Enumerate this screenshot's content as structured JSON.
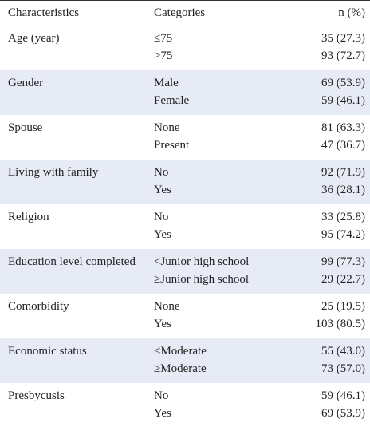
{
  "table": {
    "header": [
      "Characteristics",
      "Categories",
      "n (%)"
    ],
    "rows": [
      {
        "characteristic": "Age (year)",
        "items": [
          {
            "category": "≤75",
            "n": "35 (27.3)"
          },
          {
            "category": ">75",
            "n": "93 (72.7)"
          }
        ]
      },
      {
        "characteristic": "Gender",
        "items": [
          {
            "category": "Male",
            "n": "69 (53.9)"
          },
          {
            "category": "Female",
            "n": "59 (46.1)"
          }
        ]
      },
      {
        "characteristic": "Spouse",
        "items": [
          {
            "category": "None",
            "n": "81 (63.3)"
          },
          {
            "category": "Present",
            "n": "47 (36.7)"
          }
        ]
      },
      {
        "characteristic": "Living with family",
        "items": [
          {
            "category": "No",
            "n": "92 (71.9)"
          },
          {
            "category": "Yes",
            "n": "36 (28.1)"
          }
        ]
      },
      {
        "characteristic": "Religion",
        "items": [
          {
            "category": "No",
            "n": "33 (25.8)"
          },
          {
            "category": "Yes",
            "n": "95 (74.2)"
          }
        ]
      },
      {
        "characteristic": "Education level completed",
        "items": [
          {
            "category": "<Junior high school",
            "n": "99 (77.3)"
          },
          {
            "category": "≥Junior high school",
            "n": "29 (22.7)"
          }
        ]
      },
      {
        "characteristic": "Comorbidity",
        "items": [
          {
            "category": "None",
            "n": "25 (19.5)"
          },
          {
            "category": "Yes",
            "n": "103 (80.5)"
          }
        ]
      },
      {
        "characteristic": "Economic status",
        "items": [
          {
            "category": "<Moderate",
            "n": "55 (43.0)"
          },
          {
            "category": "≥Moderate",
            "n": "73 (57.0)"
          }
        ]
      },
      {
        "characteristic": "Presbycusis",
        "items": [
          {
            "category": "No",
            "n": "59 (46.1)"
          },
          {
            "category": "Yes",
            "n": "69 (53.9)"
          }
        ]
      }
    ]
  }
}
